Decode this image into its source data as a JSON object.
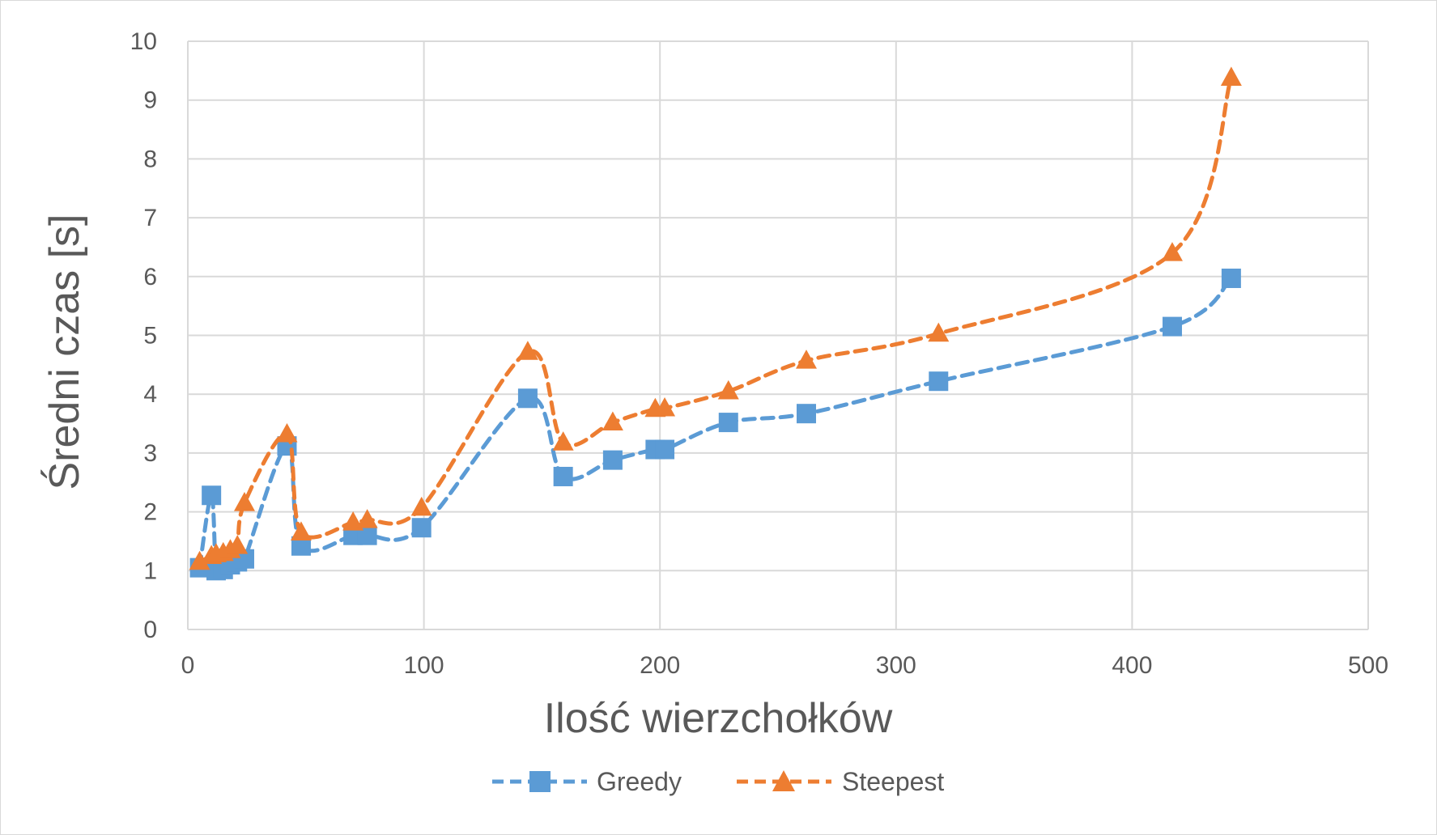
{
  "chart_data": {
    "type": "line",
    "title": "",
    "xlabel": "Ilość wierzchołków",
    "ylabel": "Średni czas [s]",
    "xlim": [
      0,
      500
    ],
    "ylim": [
      0,
      10
    ],
    "x_ticks": [
      "0",
      "100",
      "200",
      "300",
      "400",
      "500"
    ],
    "y_ticks": [
      "0",
      "1",
      "2",
      "3",
      "4",
      "5",
      "6",
      "7",
      "8",
      "9",
      "10"
    ],
    "grid": true,
    "legend_position": "bottom",
    "series": [
      {
        "name": "Greedy",
        "color": "#5b9bd5",
        "marker": "square",
        "line_style": "dashed",
        "x": [
          5,
          10,
          12,
          15,
          18,
          21,
          24,
          42,
          48,
          70,
          76,
          99,
          144,
          159,
          180,
          198,
          202,
          229,
          262,
          318,
          417,
          442
        ],
        "y": [
          1.05,
          2.28,
          1.0,
          1.02,
          1.1,
          1.15,
          1.2,
          3.12,
          1.42,
          1.6,
          1.6,
          1.73,
          3.93,
          2.6,
          2.88,
          3.06,
          3.06,
          3.52,
          3.67,
          4.22,
          5.15,
          5.97
        ]
      },
      {
        "name": "Steepest",
        "color": "#ed7d31",
        "marker": "triangle",
        "line_style": "dashed",
        "x": [
          5,
          10,
          12,
          15,
          18,
          21,
          24,
          42,
          48,
          70,
          76,
          99,
          144,
          159,
          180,
          198,
          202,
          229,
          262,
          318,
          417,
          442
        ],
        "y": [
          1.15,
          1.25,
          1.28,
          1.3,
          1.35,
          1.42,
          2.15,
          3.32,
          1.65,
          1.82,
          1.86,
          2.07,
          4.72,
          3.18,
          3.52,
          3.75,
          3.76,
          4.05,
          4.57,
          5.03,
          6.4,
          9.38
        ]
      }
    ]
  }
}
